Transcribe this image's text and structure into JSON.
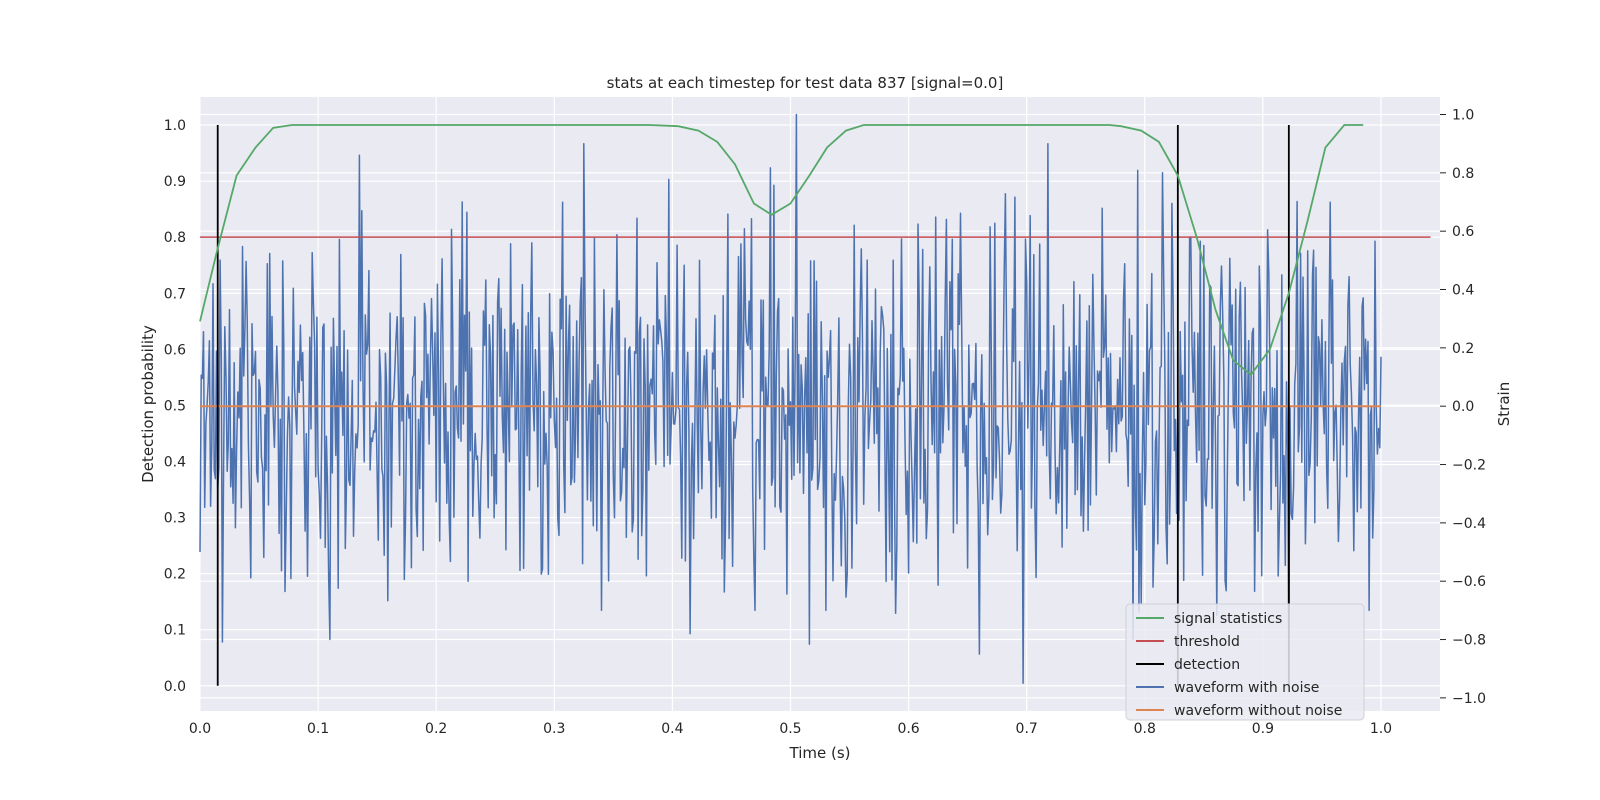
{
  "chart_data": {
    "type": "line",
    "title": "stats at each timestep for test data 837 [signal=0.0]",
    "xlabel": "Time (s)",
    "ylabel_left": "Detection probability",
    "ylabel_right": "Strain",
    "xlim": [
      0.0,
      1.05
    ],
    "ylim_left": [
      -0.045,
      1.05
    ],
    "ylim_right": [
      -1.045,
      1.06
    ],
    "x_ticks": [
      "0.0",
      "0.1",
      "0.2",
      "0.3",
      "0.4",
      "0.5",
      "0.6",
      "0.7",
      "0.8",
      "0.9",
      "1.0"
    ],
    "y_ticks_left": [
      "0.0",
      "0.1",
      "0.2",
      "0.3",
      "0.4",
      "0.5",
      "0.6",
      "0.7",
      "0.8",
      "0.9",
      "1.0"
    ],
    "y_ticks_right": [
      "−1.0",
      "−0.8",
      "−0.6",
      "−0.4",
      "−0.2",
      "0.0",
      "0.2",
      "0.4",
      "0.6",
      "0.8",
      "1.0"
    ],
    "grid": true,
    "legend_position": "lower-right",
    "colors": {
      "signal": "#55a868",
      "threshold": "#c44e52",
      "detection": "#000000",
      "noise": "#4c72b0",
      "clean": "#dd8452",
      "background": "#eaeaf2",
      "grid": "#ffffff"
    },
    "series": [
      {
        "name": "signal statistics",
        "axis": "left",
        "x": [
          0.0,
          0.015,
          0.031,
          0.047,
          0.062,
          0.078,
          0.1,
          0.2,
          0.3,
          0.38,
          0.405,
          0.422,
          0.438,
          0.453,
          0.469,
          0.484,
          0.5,
          0.516,
          0.531,
          0.547,
          0.562,
          0.58,
          0.7,
          0.77,
          0.78,
          0.797,
          0.812,
          0.828,
          0.844,
          0.86,
          0.875,
          0.89,
          0.906,
          0.922,
          0.938,
          0.953,
          0.969,
          0.985
        ],
        "values": [
          0.65,
          0.78,
          0.91,
          0.96,
          0.995,
          1.0,
          1.0,
          1.0,
          1.0,
          1.0,
          0.998,
          0.99,
          0.97,
          0.93,
          0.86,
          0.84,
          0.86,
          0.91,
          0.96,
          0.99,
          1.0,
          1.0,
          1.0,
          1.0,
          0.998,
          0.99,
          0.97,
          0.91,
          0.8,
          0.67,
          0.58,
          0.555,
          0.6,
          0.7,
          0.83,
          0.96,
          1.0,
          1.0
        ]
      },
      {
        "name": "threshold",
        "axis": "left",
        "x": [
          0.0,
          1.042
        ],
        "values": [
          0.8,
          0.8
        ]
      },
      {
        "name": "detection",
        "axis": "left",
        "type": "vlines",
        "x": [
          0.015,
          0.828,
          0.922
        ],
        "ymin": 0.0,
        "ymax": 1.0
      },
      {
        "name": "waveform with noise",
        "axis": "right",
        "x_start": 0.0,
        "x_end": 1.0,
        "keyframes": [
          [
            0.0,
            -0.5
          ],
          [
            0.04,
            0.3
          ],
          [
            0.135,
            0.86
          ],
          [
            0.11,
            -0.8
          ],
          [
            0.227,
            -0.6
          ],
          [
            0.222,
            0.7
          ],
          [
            0.325,
            0.9
          ],
          [
            0.34,
            -0.7
          ],
          [
            0.415,
            -0.78
          ],
          [
            0.47,
            -0.7
          ],
          [
            0.505,
            1.0
          ],
          [
            0.53,
            -0.7
          ],
          [
            0.66,
            -0.85
          ],
          [
            0.697,
            -0.95
          ],
          [
            0.718,
            0.9
          ],
          [
            0.79,
            -0.8
          ],
          [
            0.815,
            0.8
          ],
          [
            0.922,
            -0.83
          ],
          [
            0.99,
            -0.7
          ]
        ]
      },
      {
        "name": "waveform without noise",
        "axis": "right",
        "x": [
          0.0,
          1.0
        ],
        "values": [
          0.0,
          0.0
        ]
      }
    ],
    "legend": [
      "signal statistics",
      "threshold",
      "detection",
      "waveform with noise",
      "waveform without noise"
    ]
  }
}
